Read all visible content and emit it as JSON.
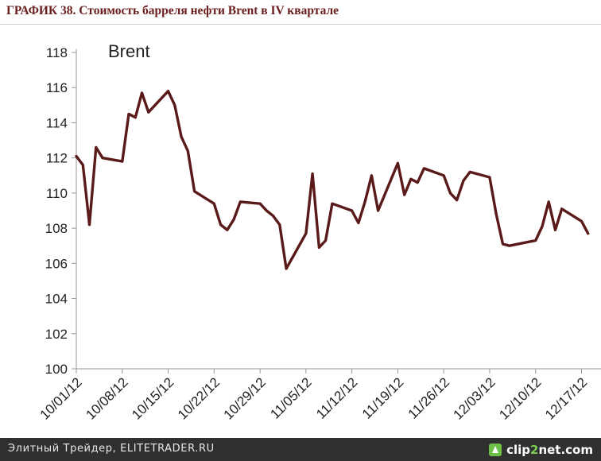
{
  "header": {
    "title": "ГРАФИК 38. Стоимость барреля нефти Brent в IV квартале"
  },
  "footer": {
    "text": "Элитный Трейдер, ELITETRADER.RU",
    "brand_pre": "clip",
    "brand_num": "2",
    "brand_post": "net.com"
  },
  "chart_data": {
    "type": "line",
    "title": "ГРАФИК 38. Стоимость барреля нефти Brent в IV квартале",
    "xlabel": "",
    "ylabel": "",
    "ylim": [
      100,
      118
    ],
    "yticks": [
      100,
      102,
      104,
      106,
      108,
      110,
      112,
      114,
      116,
      118
    ],
    "xlim": [
      "10/01/12",
      "12/19/12"
    ],
    "xticks": [
      "10/01/12",
      "10/08/12",
      "10/15/12",
      "10/22/12",
      "10/29/12",
      "11/05/12",
      "11/12/12",
      "11/19/12",
      "11/26/12",
      "12/03/12",
      "12/10/12",
      "12/17/12"
    ],
    "grid": false,
    "line_color": "#5a1a1a",
    "series": [
      {
        "name": "Brent",
        "points": [
          [
            "10/01/12",
            112.1
          ],
          [
            "10/02/12",
            111.6
          ],
          [
            "10/03/12",
            108.2
          ],
          [
            "10/04/12",
            112.6
          ],
          [
            "10/05/12",
            112.0
          ],
          [
            "10/08/12",
            111.8
          ],
          [
            "10/09/12",
            114.5
          ],
          [
            "10/10/12",
            114.3
          ],
          [
            "10/11/12",
            115.7
          ],
          [
            "10/12/12",
            114.6
          ],
          [
            "10/15/12",
            115.8
          ],
          [
            "10/16/12",
            115.0
          ],
          [
            "10/17/12",
            113.2
          ],
          [
            "10/18/12",
            112.4
          ],
          [
            "10/19/12",
            110.1
          ],
          [
            "10/22/12",
            109.4
          ],
          [
            "10/23/12",
            108.2
          ],
          [
            "10/24/12",
            107.9
          ],
          [
            "10/25/12",
            108.5
          ],
          [
            "10/26/12",
            109.5
          ],
          [
            "10/29/12",
            109.4
          ],
          [
            "10/30/12",
            109.0
          ],
          [
            "10/31/12",
            108.7
          ],
          [
            "11/01/12",
            108.2
          ],
          [
            "11/02/12",
            105.7
          ],
          [
            "11/05/12",
            107.7
          ],
          [
            "11/06/12",
            111.1
          ],
          [
            "11/07/12",
            106.9
          ],
          [
            "11/08/12",
            107.3
          ],
          [
            "11/09/12",
            109.4
          ],
          [
            "11/12/12",
            109.0
          ],
          [
            "11/13/12",
            108.3
          ],
          [
            "11/14/12",
            109.5
          ],
          [
            "11/15/12",
            111.0
          ],
          [
            "11/16/12",
            109.0
          ],
          [
            "11/19/12",
            111.7
          ],
          [
            "11/20/12",
            109.9
          ],
          [
            "11/21/12",
            110.8
          ],
          [
            "11/22/12",
            110.6
          ],
          [
            "11/23/12",
            111.4
          ],
          [
            "11/26/12",
            111.0
          ],
          [
            "11/27/12",
            110.0
          ],
          [
            "11/28/12",
            109.6
          ],
          [
            "11/29/12",
            110.7
          ],
          [
            "11/30/12",
            111.2
          ],
          [
            "12/03/12",
            110.9
          ],
          [
            "12/04/12",
            108.8
          ],
          [
            "12/05/12",
            107.1
          ],
          [
            "12/06/12",
            107.0
          ],
          [
            "12/10/12",
            107.3
          ],
          [
            "12/11/12",
            108.1
          ],
          [
            "12/12/12",
            109.5
          ],
          [
            "12/13/12",
            107.9
          ],
          [
            "12/14/12",
            109.1
          ],
          [
            "12/17/12",
            108.4
          ],
          [
            "12/18/12",
            107.7
          ]
        ]
      }
    ]
  }
}
